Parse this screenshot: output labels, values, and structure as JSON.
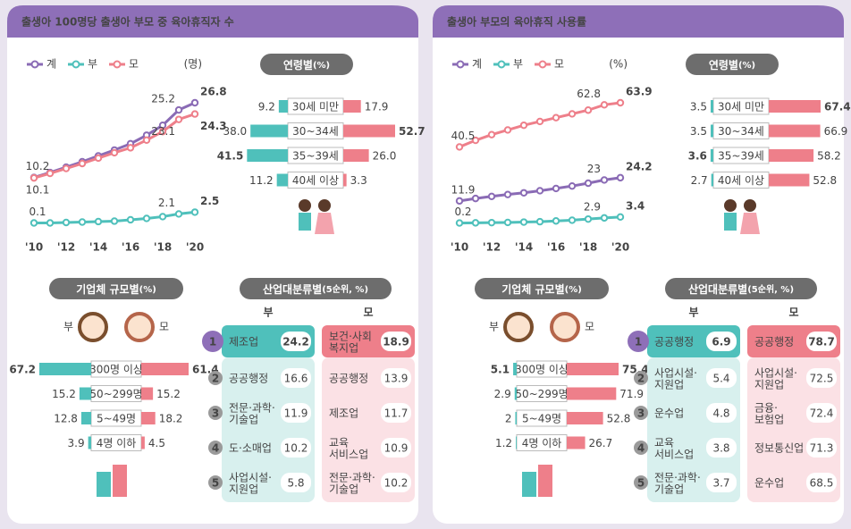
{
  "panels": [
    {
      "title": "출생아 100명당 출생아 부모 중 육아휴직자 수"
    },
    {
      "title": "출생아 부모의 육아휴직 사용률"
    }
  ],
  "chart_data": [
    {
      "type": "line",
      "unit": "(명)",
      "categories": [
        "'10",
        null,
        "'12",
        null,
        "'14",
        null,
        "'16",
        null,
        "'18",
        null,
        "'20"
      ],
      "series": [
        {
          "name": "계",
          "color": "#8a6bb5",
          "values": [
            10.2,
            11.3,
            12.5,
            13.7,
            15.0,
            16.3,
            17.7,
            19.6,
            21.8,
            25.2,
            26.8
          ]
        },
        {
          "name": "부",
          "color": "#4fc0bb",
          "values": [
            0.1,
            0.1,
            0.2,
            0.3,
            0.4,
            0.5,
            0.8,
            1.1,
            1.5,
            2.1,
            2.5
          ]
        },
        {
          "name": "모",
          "color": "#ee7f8a",
          "values": [
            10.1,
            11.1,
            12.2,
            13.3,
            14.5,
            15.7,
            16.8,
            18.5,
            20.4,
            23.1,
            24.3
          ]
        }
      ]
    },
    {
      "type": "bar",
      "title": "연령별",
      "unit": "(%)",
      "categories": [
        "30세 미만",
        "30~34세",
        "35~39세",
        "40세 이상"
      ],
      "series": [
        {
          "color": "#4fc0bb",
          "values": [
            9.2,
            38.0,
            41.5,
            11.2
          ],
          "value_labels": [
            null,
            "38.0",
            null,
            null
          ]
        },
        {
          "color": "#ee7f8a",
          "values": [
            17.9,
            52.7,
            26.0,
            3.3
          ],
          "value_labels": [
            null,
            null,
            "26.0",
            null
          ]
        }
      ]
    },
    {
      "type": "bar",
      "title": "기업체 규모별",
      "unit": "(%)",
      "categories": [
        "300명 이상",
        "50~299명",
        "5~49명",
        "4명 이하"
      ],
      "series": [
        {
          "name": "부",
          "color": "#4fc0bb",
          "values": [
            67.2,
            15.2,
            12.8,
            3.9
          ]
        },
        {
          "name": "모",
          "color": "#ee7f8a",
          "values": [
            61.4,
            15.2,
            18.2,
            4.5
          ]
        }
      ]
    },
    {
      "type": "ranking",
      "title": "산업대분류별",
      "unit": "(5순위, %)",
      "ranks": [
        1,
        2,
        3,
        4,
        5
      ],
      "columns": [
        {
          "name": "부",
          "color": "#4fc0bb",
          "labels": [
            "제조업",
            "공공행정",
            "전문·과학·\n기술업",
            "도·소매업",
            "사업시설·\n지원업"
          ],
          "values": [
            24.2,
            16.6,
            11.9,
            10.2,
            5.8
          ]
        },
        {
          "name": "모",
          "color": "#ee7f8a",
          "labels": [
            "보건·사회\n복지업",
            "공공행정",
            "제조업",
            "교육\n서비스업",
            "전문·과학·\n기술업"
          ],
          "values": [
            18.9,
            13.9,
            11.7,
            10.9,
            10.2
          ]
        }
      ]
    },
    {
      "type": "line",
      "unit": "(%)",
      "categories": [
        "'10",
        null,
        "'12",
        null,
        "'14",
        null,
        "'16",
        null,
        "'18",
        null,
        "'20"
      ],
      "series": [
        {
          "name": "계",
          "color": "#8a6bb5",
          "values": [
            11.9,
            13.2,
            14.3,
            15.3,
            16.2,
            17.3,
            18.5,
            19.8,
            21.3,
            23.0,
            24.2
          ]
        },
        {
          "name": "부",
          "color": "#4fc0bb",
          "values": [
            0.2,
            0.3,
            0.4,
            0.5,
            0.7,
            0.9,
            1.3,
            1.7,
            2.3,
            2.9,
            3.4
          ]
        },
        {
          "name": "모",
          "color": "#ee7f8a",
          "values": [
            40.5,
            44.0,
            47.0,
            49.5,
            52.0,
            54.0,
            56.0,
            58.0,
            60.0,
            62.8,
            63.9
          ]
        }
      ]
    },
    {
      "type": "bar",
      "title": "연령별",
      "unit": "(%)",
      "categories": [
        "30세 미만",
        "30~34세",
        "35~39세",
        "40세 이상"
      ],
      "series": [
        {
          "color": "#4fc0bb",
          "values": [
            3.5,
            3.5,
            3.6,
            2.7
          ]
        },
        {
          "color": "#ee7f8a",
          "values": [
            67.4,
            66.9,
            58.2,
            52.8
          ]
        }
      ]
    },
    {
      "type": "bar",
      "title": "기업체 규모별",
      "unit": "(%)",
      "categories": [
        "300명 이상",
        "50~299명",
        "5~49명",
        "4명 이하"
      ],
      "series": [
        {
          "name": "부",
          "color": "#4fc0bb",
          "values": [
            5.1,
            2.9,
            2.0,
            1.2
          ]
        },
        {
          "name": "모",
          "color": "#ee7f8a",
          "values": [
            75.4,
            71.9,
            52.8,
            26.7
          ]
        }
      ]
    },
    {
      "type": "ranking",
      "title": "산업대분류별",
      "unit": "(5순위, %)",
      "ranks": [
        1,
        2,
        3,
        4,
        5
      ],
      "columns": [
        {
          "name": "부",
          "color": "#4fc0bb",
          "labels": [
            "공공행정",
            "사업시설·\n지원업",
            "운수업",
            "교육\n서비스업",
            "전문·과학·\n기술업"
          ],
          "values": [
            6.9,
            5.4,
            4.8,
            3.8,
            3.7
          ]
        },
        {
          "name": "모",
          "color": "#ee7f8a",
          "labels": [
            "공공행정",
            "사업시설·\n지원업",
            "금융·\n보험업",
            "정보통신업",
            "운수업"
          ],
          "values": [
            78.7,
            72.5,
            72.4,
            71.3,
            68.5
          ]
        }
      ]
    }
  ]
}
